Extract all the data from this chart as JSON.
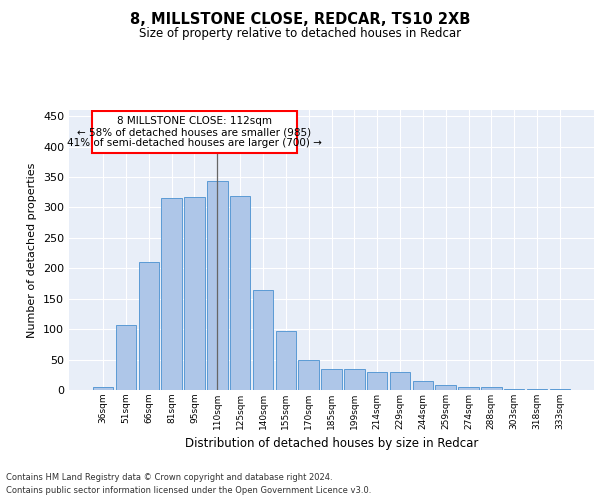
{
  "title1": "8, MILLSTONE CLOSE, REDCAR, TS10 2XB",
  "title2": "Size of property relative to detached houses in Redcar",
  "xlabel": "Distribution of detached houses by size in Redcar",
  "ylabel": "Number of detached properties",
  "categories": [
    "36sqm",
    "51sqm",
    "66sqm",
    "81sqm",
    "95sqm",
    "110sqm",
    "125sqm",
    "140sqm",
    "155sqm",
    "170sqm",
    "185sqm",
    "199sqm",
    "214sqm",
    "229sqm",
    "244sqm",
    "259sqm",
    "274sqm",
    "288sqm",
    "303sqm",
    "318sqm",
    "333sqm"
  ],
  "values": [
    5,
    106,
    210,
    315,
    317,
    343,
    318,
    165,
    97,
    50,
    35,
    35,
    30,
    30,
    15,
    8,
    5,
    5,
    2,
    1,
    1
  ],
  "bar_color": "#aec6e8",
  "bar_edge_color": "#5b9bd5",
  "property_line_index": 5,
  "annotation_text1": "8 MILLSTONE CLOSE: 112sqm",
  "annotation_text2": "← 58% of detached houses are smaller (985)",
  "annotation_text3": "41% of semi-detached houses are larger (700) →",
  "ylim": [
    0,
    460
  ],
  "yticks": [
    0,
    50,
    100,
    150,
    200,
    250,
    300,
    350,
    400,
    450
  ],
  "plot_bg_color": "#e8eef8",
  "footer_line1": "Contains HM Land Registry data © Crown copyright and database right 2024.",
  "footer_line2": "Contains public sector information licensed under the Open Government Licence v3.0."
}
